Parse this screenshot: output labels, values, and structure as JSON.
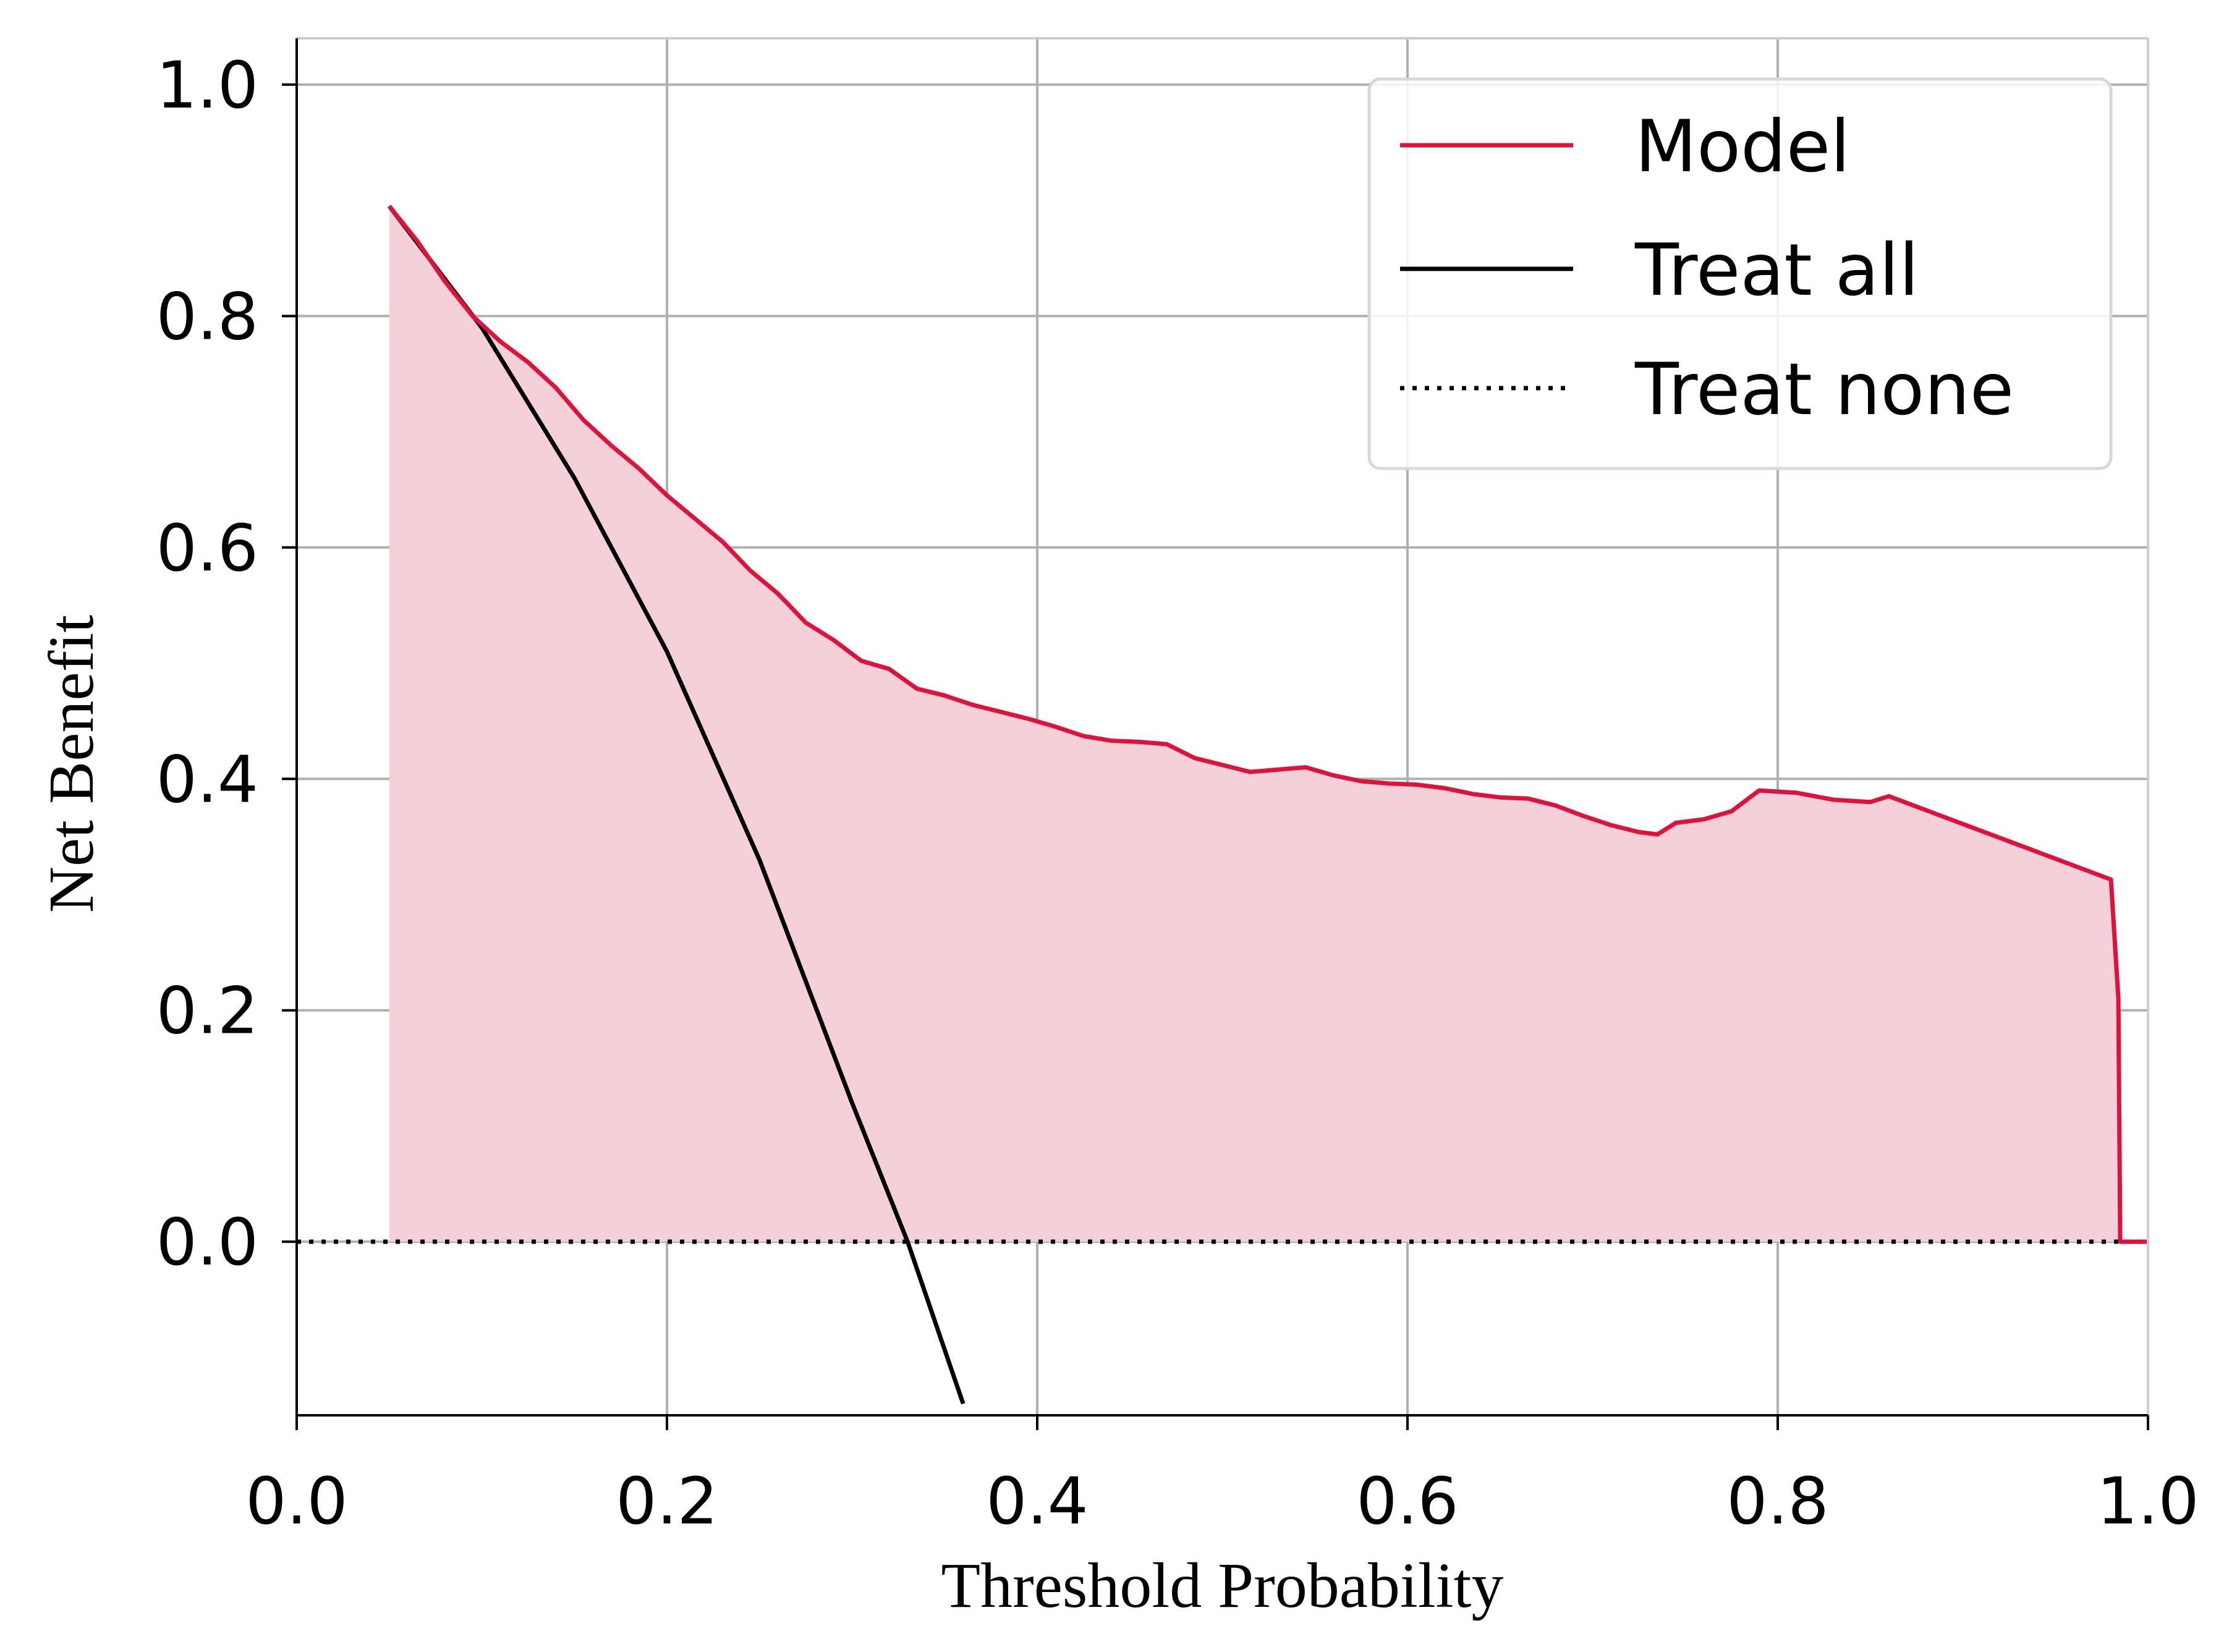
{
  "chart_data": {
    "type": "line",
    "title": "",
    "xlabel": "Threshold Probability",
    "ylabel": "Net Benefit",
    "xlim": [
      0.0,
      1.0
    ],
    "ylim": [
      -0.15,
      1.04
    ],
    "x_ticks": [
      "0.0",
      "0.2",
      "0.4",
      "0.6",
      "0.8",
      "1.0"
    ],
    "y_ticks": [
      "0.0",
      "0.2",
      "0.4",
      "0.6",
      "0.8",
      "1.0"
    ],
    "grid": true,
    "legend_position": "top-right",
    "colors": {
      "model": "#DC143C",
      "model_fill": "#F6D0D9",
      "treat_all": "#000000",
      "treat_none": "#000000",
      "grid": "#B0B0B0"
    },
    "series": [
      {
        "name": "Model",
        "style": "solid",
        "x": [
          0.05,
          0.065,
          0.08,
          0.095,
          0.11,
          0.125,
          0.14,
          0.155,
          0.17,
          0.185,
          0.2,
          0.215,
          0.23,
          0.245,
          0.26,
          0.275,
          0.29,
          0.305,
          0.32,
          0.335,
          0.35,
          0.365,
          0.38,
          0.395,
          0.41,
          0.425,
          0.44,
          0.455,
          0.47,
          0.485,
          0.5,
          0.515,
          0.53,
          0.545,
          0.56,
          0.575,
          0.59,
          0.605,
          0.62,
          0.635,
          0.65,
          0.665,
          0.68,
          0.695,
          0.71,
          0.725,
          0.735,
          0.745,
          0.76,
          0.775,
          0.79,
          0.81,
          0.83,
          0.85,
          0.86,
          0.9,
          0.94,
          0.98,
          0.984,
          0.985,
          1.0
        ],
        "y": [
          0.895,
          0.865,
          0.83,
          0.8,
          0.778,
          0.76,
          0.738,
          0.71,
          0.688,
          0.668,
          0.645,
          0.625,
          0.605,
          0.58,
          0.56,
          0.535,
          0.52,
          0.502,
          0.495,
          0.478,
          0.472,
          0.464,
          0.458,
          0.452,
          0.445,
          0.437,
          0.433,
          0.432,
          0.43,
          0.418,
          0.412,
          0.406,
          0.408,
          0.41,
          0.403,
          0.398,
          0.396,
          0.395,
          0.392,
          0.387,
          0.384,
          0.383,
          0.377,
          0.368,
          0.36,
          0.354,
          0.352,
          0.362,
          0.365,
          0.372,
          0.39,
          0.388,
          0.382,
          0.38,
          0.385,
          0.361,
          0.337,
          0.313,
          0.21,
          0.0,
          0.0
        ]
      },
      {
        "name": "Treat all",
        "style": "solid",
        "x": [
          0.05,
          0.1,
          0.15,
          0.2,
          0.25,
          0.3,
          0.33,
          0.36
        ],
        "y": [
          0.895,
          0.79,
          0.66,
          0.51,
          0.33,
          0.12,
          0.0,
          -0.14
        ]
      },
      {
        "name": "Treat none",
        "style": "dotted",
        "x": [
          0.0,
          1.0
        ],
        "y": [
          0.0,
          0.0
        ]
      }
    ]
  }
}
